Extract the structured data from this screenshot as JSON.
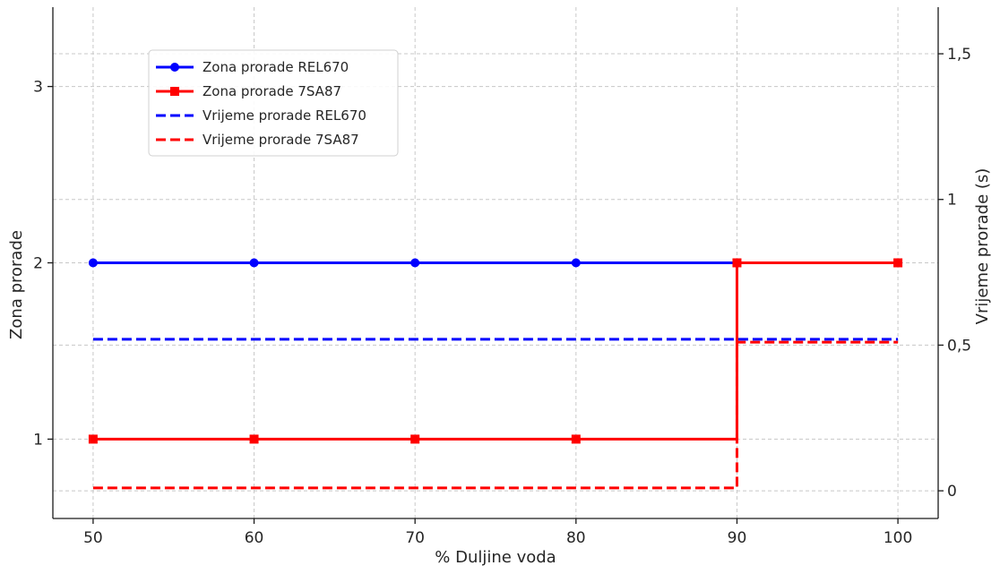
{
  "chart_data": {
    "type": "line",
    "title": "",
    "xlabel": "% Duljine voda",
    "ylabel": "Zona prorade",
    "ylabel_right": "Vrijeme prorade (s)",
    "x_ticks": [
      50,
      60,
      70,
      80,
      90,
      100
    ],
    "x_tick_labels": [
      "50",
      "60",
      "70",
      "80",
      "90",
      "100"
    ],
    "xlim": [
      47.5,
      102.5
    ],
    "ylim": [
      0.55,
      3.45
    ],
    "y_ticks": [
      1,
      2,
      3
    ],
    "y_tick_labels": [
      "1",
      "2",
      "3"
    ],
    "y2lim": [
      -0.095,
      1.66
    ],
    "y2_ticks": [
      0,
      0.5,
      1,
      1.5
    ],
    "y2_tick_labels": [
      "0",
      "0,5",
      "1",
      "1,5"
    ],
    "grid": true,
    "legend_position": "top-left",
    "series": [
      {
        "name": "Zona prorade REL670",
        "axis": "left",
        "style": "solid",
        "marker": "circle",
        "color": "#0000ff",
        "step": "post",
        "x": [
          50,
          60,
          70,
          80,
          90,
          100
        ],
        "values": [
          2,
          2,
          2,
          2,
          2,
          2
        ]
      },
      {
        "name": "Zona prorade 7SA87",
        "axis": "left",
        "style": "solid",
        "marker": "square",
        "color": "#ff0000",
        "step": "post",
        "x": [
          50,
          60,
          70,
          80,
          90,
          100
        ],
        "values": [
          1,
          1,
          1,
          1,
          2,
          2
        ]
      },
      {
        "name": "Vrijeme prorade REL670",
        "axis": "right",
        "style": "dashed",
        "marker": "none",
        "color": "#0000ff",
        "step": "post",
        "x": [
          50,
          60,
          70,
          80,
          90,
          100
        ],
        "values": [
          0.52,
          0.52,
          0.52,
          0.52,
          0.52,
          0.52
        ]
      },
      {
        "name": "Vrijeme prorade 7SA87",
        "axis": "right",
        "style": "dashed",
        "marker": "none",
        "color": "#ff0000",
        "step": "post",
        "x": [
          50,
          60,
          70,
          80,
          90,
          100
        ],
        "values": [
          0.01,
          0.01,
          0.01,
          0.01,
          0.51,
          0.51
        ]
      }
    ]
  }
}
